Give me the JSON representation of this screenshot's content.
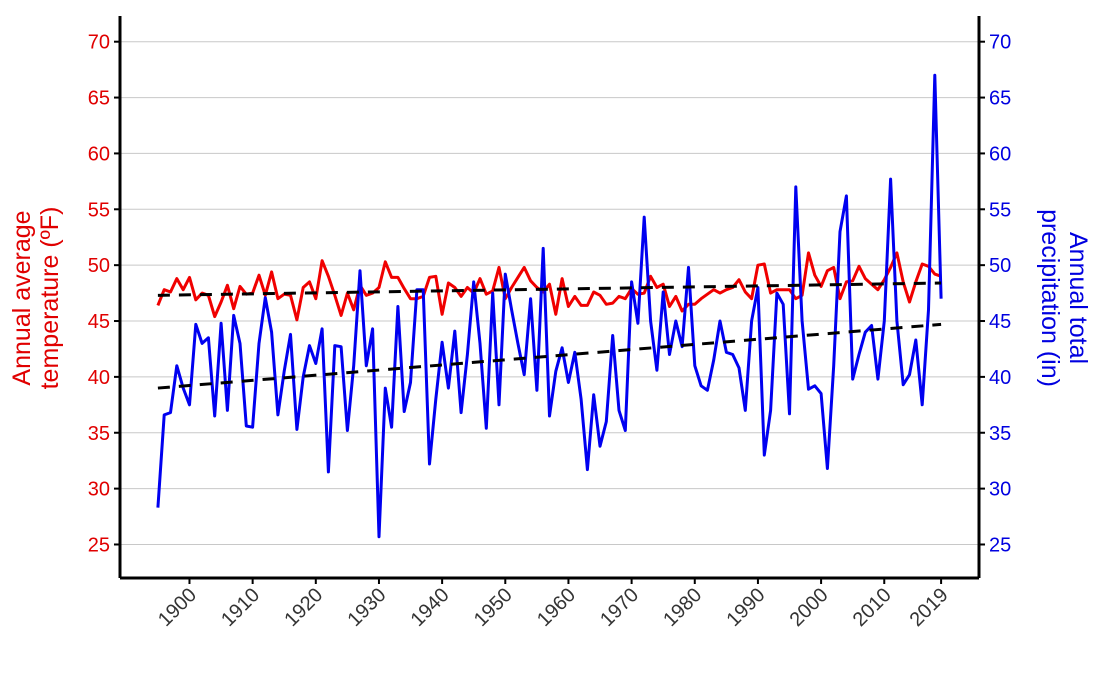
{
  "chart_data": {
    "type": "line",
    "x_start": 1895,
    "x_end": 2019,
    "xlim": [
      1889,
      2025
    ],
    "x_ticks": [
      "1900",
      "1910",
      "1920",
      "1930",
      "1940",
      "1950",
      "1960",
      "1970",
      "1980",
      "1990",
      "2000",
      "2010",
      "2019"
    ],
    "ylim": [
      22,
      72.3
    ],
    "y_ticks": [
      "25",
      "30",
      "35",
      "40",
      "45",
      "50",
      "55",
      "60",
      "65",
      "70"
    ],
    "ylabel_left": [
      "Annual average",
      "temperature (ºF)"
    ],
    "ylabel_right": [
      "Annual total",
      "precipitation (in)"
    ],
    "grid": "horizontal",
    "colors": {
      "temperature": "#f00000",
      "precipitation": "#0000f0",
      "trend": "#000000",
      "left_axis_text": "#e00000",
      "right_axis_text": "#0000e0"
    },
    "series": [
      {
        "name": "Annual average temperature (ºF)",
        "axis": "left",
        "values": [
          46.4,
          47.8,
          47.6,
          48.8,
          47.8,
          48.9,
          46.9,
          47.5,
          47.3,
          45.4,
          46.7,
          48.2,
          46.1,
          48.1,
          47.4,
          47.5,
          49.1,
          47.3,
          49.4,
          47.0,
          47.4,
          47.3,
          45.1,
          48.0,
          48.5,
          47.0,
          50.4,
          49.0,
          47.3,
          45.5,
          47.5,
          46.0,
          48.2,
          47.3,
          47.5,
          48.0,
          50.3,
          48.9,
          48.9,
          47.9,
          47.0,
          47.0,
          47.2,
          48.9,
          49.0,
          45.6,
          48.4,
          48.0,
          47.2,
          48.0,
          47.5,
          48.8,
          47.4,
          47.7,
          49.8,
          47.0,
          48.0,
          48.9,
          49.8,
          48.6,
          48.0,
          47.6,
          48.3,
          45.6,
          48.8,
          46.3,
          47.2,
          46.4,
          46.4,
          47.6,
          47.3,
          46.5,
          46.6,
          47.2,
          47.0,
          47.9,
          47.4,
          47.5,
          49.0,
          48.0,
          48.3,
          46.3,
          47.2,
          45.9,
          46.5,
          46.5,
          47.0,
          47.4,
          47.8,
          47.5,
          47.8,
          48.0,
          48.7,
          47.6,
          47.0,
          50.0,
          50.1,
          47.5,
          47.8,
          47.8,
          47.8,
          47.0,
          47.3,
          51.1,
          49.1,
          48.1,
          49.5,
          49.8,
          47.0,
          48.5,
          48.6,
          49.9,
          48.8,
          48.3,
          47.8,
          48.7,
          49.8,
          51.1,
          48.5,
          46.7,
          48.5,
          50.1,
          49.9,
          49.2,
          49.0
        ],
        "trend": [
          47.3,
          48.4
        ]
      },
      {
        "name": "Annual total precipitation (in)",
        "axis": "right",
        "values": [
          28.3,
          36.6,
          36.8,
          41.0,
          39.0,
          37.5,
          44.7,
          43.0,
          43.5,
          36.5,
          44.8,
          37.0,
          45.5,
          43.0,
          35.6,
          35.5,
          43.0,
          47.1,
          44.0,
          36.6,
          40.5,
          43.8,
          35.3,
          40.0,
          42.8,
          41.2,
          44.3,
          31.5,
          42.8,
          42.7,
          35.2,
          41.0,
          49.5,
          41.0,
          44.3,
          25.7,
          39.0,
          35.5,
          46.3,
          36.9,
          39.5,
          47.8,
          47.8,
          32.2,
          38.0,
          43.1,
          39.0,
          44.1,
          36.8,
          42.0,
          48.5,
          43.0,
          35.4,
          47.5,
          37.5,
          49.2,
          46.0,
          43.0,
          40.2,
          47.0,
          38.8,
          51.5,
          36.5,
          40.5,
          42.6,
          39.5,
          42.2,
          38.0,
          31.7,
          38.4,
          33.8,
          36.0,
          43.7,
          37.0,
          35.2,
          48.5,
          44.8,
          54.3,
          45.0,
          40.6,
          47.6,
          42.0,
          45.0,
          42.7,
          49.8,
          41.0,
          39.2,
          38.8,
          41.5,
          45.0,
          42.2,
          42.0,
          40.8,
          37.0,
          45.0,
          48.0,
          33.0,
          37.0,
          47.5,
          46.5,
          36.7,
          57.0,
          45.0,
          38.9,
          39.2,
          38.5,
          31.8,
          41.0,
          53.0,
          56.2,
          39.8,
          42.0,
          44.0,
          44.6,
          39.8,
          45.0,
          57.7,
          45.0,
          39.3,
          40.2,
          43.3,
          37.5,
          46.0,
          67.0,
          47.0
        ],
        "trend": [
          39.0,
          44.7
        ]
      }
    ]
  }
}
